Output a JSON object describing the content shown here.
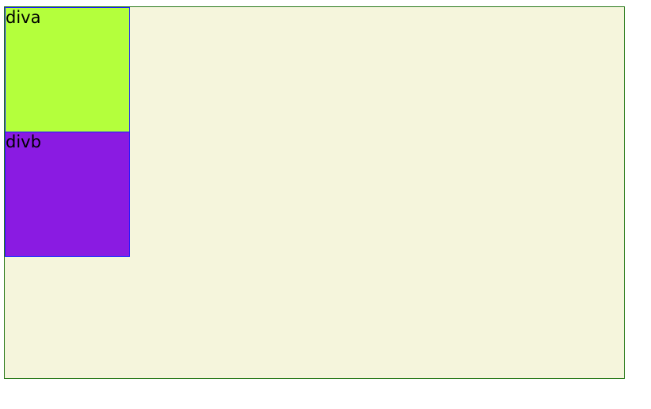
{
  "container": {
    "background": "#f5f5dc",
    "border_color": "#2a7a1a",
    "boxes": [
      {
        "label": "diva",
        "background": "#b4ff3c",
        "border_color": "#1a1aff"
      },
      {
        "label": "divb",
        "background": "#8a1be2",
        "border_color": "#1a1aff"
      }
    ]
  }
}
